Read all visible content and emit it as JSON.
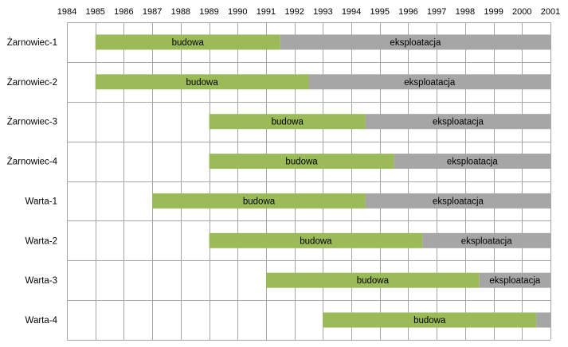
{
  "chart_data": {
    "type": "bar",
    "orientation": "horizontal-stacked",
    "title": "",
    "xlabel": "",
    "ylabel": "",
    "x_ticks": [
      "1984",
      "1985",
      "1986",
      "1987",
      "1988",
      "1989",
      "1990",
      "1991",
      "1992",
      "1993",
      "1994",
      "1995",
      "1996",
      "1997",
      "1998",
      "1999",
      "2000",
      "2001"
    ],
    "xlim": [
      1984,
      2001
    ],
    "grid": true,
    "legend": "none",
    "phases": [
      {
        "name": "budowa",
        "color": "#9bbb59"
      },
      {
        "name": "eksploatacja",
        "color": "#a6a6a6"
      }
    ],
    "rows": [
      {
        "label": "Żarnowiec-1",
        "start": 1985,
        "build_end": 1991.5,
        "end": 2001,
        "build_label": "budowa",
        "ops_label": "eksploatacja"
      },
      {
        "label": "Żarnowiec-2",
        "start": 1985,
        "build_end": 1992.5,
        "end": 2001,
        "build_label": "budowa",
        "ops_label": "eksploatacja"
      },
      {
        "label": "Żarnowiec-3",
        "start": 1989,
        "build_end": 1994.5,
        "end": 2001,
        "build_label": "budowa",
        "ops_label": "eksploatacja"
      },
      {
        "label": "Żarnowiec-4",
        "start": 1989,
        "build_end": 1995.5,
        "end": 2001,
        "build_label": "budowa",
        "ops_label": "eksploatacja"
      },
      {
        "label": "Warta-1",
        "start": 1987,
        "build_end": 1994.5,
        "end": 2001,
        "build_label": "budowa",
        "ops_label": "eksploatacja"
      },
      {
        "label": "Warta-2",
        "start": 1989,
        "build_end": 1996.5,
        "end": 2001,
        "build_label": "budowa",
        "ops_label": "eksploatacja"
      },
      {
        "label": "Warta-3",
        "start": 1991,
        "build_end": 1998.5,
        "end": 2001,
        "build_label": "budowa",
        "ops_label": "eksploatacja"
      },
      {
        "label": "Warta-4",
        "start": 1993,
        "build_end": 2000.5,
        "end": 2001,
        "build_label": "budowa",
        "ops_label": ""
      }
    ]
  }
}
